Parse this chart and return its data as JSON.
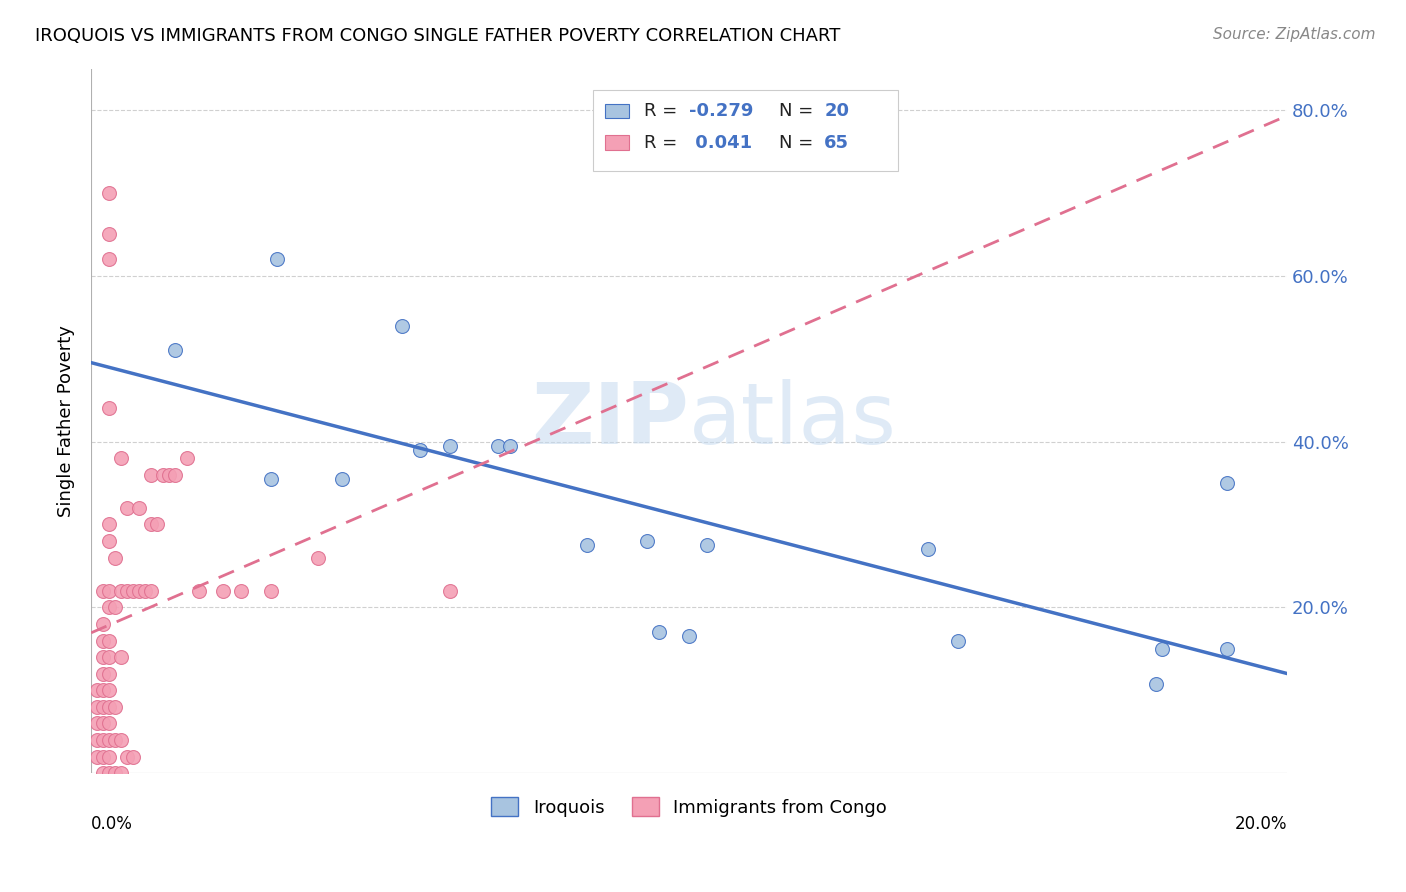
{
  "title": "IROQUOIS VS IMMIGRANTS FROM CONGO SINGLE FATHER POVERTY CORRELATION CHART",
  "source": "Source: ZipAtlas.com",
  "ylabel": "Single Father Poverty",
  "xlim": [
    0.0,
    0.2
  ],
  "ylim": [
    0.0,
    0.85
  ],
  "color_iroquois": "#a8c4e0",
  "color_congo": "#f4a0b5",
  "color_iroquois_line": "#4472c4",
  "color_congo_line": "#e07090",
  "iroquois_x": [
    0.014,
    0.03,
    0.031,
    0.042,
    0.052,
    0.055,
    0.06,
    0.068,
    0.07,
    0.083,
    0.093,
    0.095,
    0.1,
    0.103,
    0.14,
    0.145,
    0.178,
    0.179,
    0.19,
    0.19
  ],
  "iroquois_y": [
    0.51,
    0.355,
    0.62,
    0.355,
    0.54,
    0.39,
    0.395,
    0.395,
    0.395,
    0.275,
    0.28,
    0.17,
    0.165,
    0.275,
    0.27,
    0.16,
    0.108,
    0.15,
    0.15,
    0.35
  ],
  "congo_x": [
    0.001,
    0.001,
    0.001,
    0.001,
    0.001,
    0.002,
    0.002,
    0.002,
    0.002,
    0.002,
    0.002,
    0.002,
    0.002,
    0.002,
    0.002,
    0.002,
    0.003,
    0.003,
    0.003,
    0.003,
    0.003,
    0.003,
    0.003,
    0.003,
    0.003,
    0.003,
    0.003,
    0.003,
    0.003,
    0.003,
    0.003,
    0.003,
    0.003,
    0.004,
    0.004,
    0.004,
    0.004,
    0.004,
    0.005,
    0.005,
    0.005,
    0.005,
    0.005,
    0.006,
    0.006,
    0.006,
    0.007,
    0.007,
    0.008,
    0.008,
    0.009,
    0.01,
    0.01,
    0.01,
    0.011,
    0.012,
    0.013,
    0.014,
    0.016,
    0.018,
    0.022,
    0.025,
    0.03,
    0.038,
    0.06
  ],
  "congo_y": [
    0.02,
    0.04,
    0.06,
    0.08,
    0.1,
    0.0,
    0.02,
    0.04,
    0.06,
    0.08,
    0.1,
    0.12,
    0.14,
    0.16,
    0.18,
    0.22,
    0.0,
    0.02,
    0.04,
    0.06,
    0.08,
    0.1,
    0.12,
    0.14,
    0.16,
    0.2,
    0.22,
    0.28,
    0.3,
    0.44,
    0.62,
    0.65,
    0.7,
    0.0,
    0.04,
    0.08,
    0.2,
    0.26,
    0.0,
    0.04,
    0.14,
    0.22,
    0.38,
    0.02,
    0.22,
    0.32,
    0.02,
    0.22,
    0.22,
    0.32,
    0.22,
    0.22,
    0.3,
    0.36,
    0.3,
    0.36,
    0.36,
    0.36,
    0.38,
    0.22,
    0.22,
    0.22,
    0.22,
    0.26,
    0.22
  ]
}
